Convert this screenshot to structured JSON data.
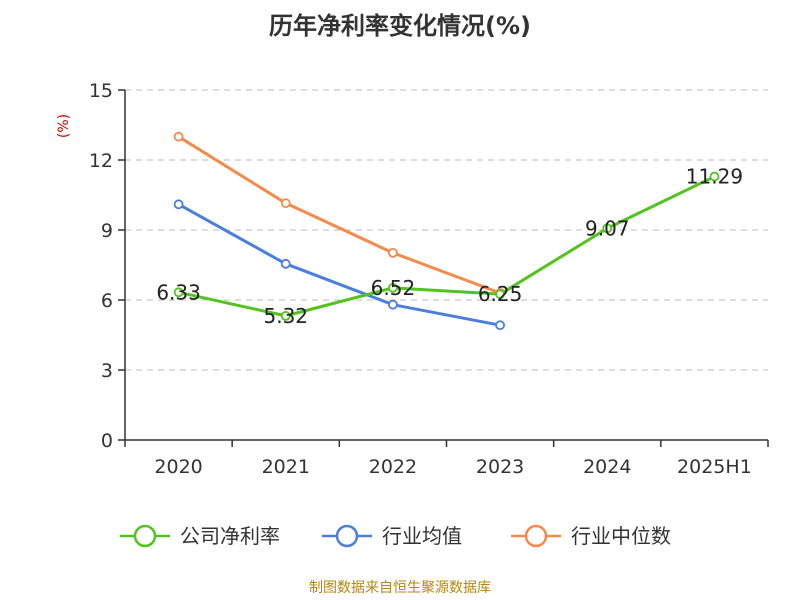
{
  "colors": {
    "net_margin": "#52c31f",
    "industry_mean": "#4a7fe0",
    "industry_median": "#f58a4b",
    "source_text": "#b8860b",
    "unit_text": "#cc0000"
  },
  "chart_data": {
    "type": "line",
    "title": "历年净利率变化情况(%)",
    "ylabel": "(%)",
    "xlabel": "",
    "categories": [
      "2020",
      "2021",
      "2022",
      "2023",
      "2024",
      "2025H1"
    ],
    "ylim": [
      0,
      15
    ],
    "yticks": [
      0,
      3,
      6,
      9,
      12,
      15
    ],
    "grid": true,
    "legend_position": "bottom",
    "series": [
      {
        "name": "公司净利率",
        "color": "#52c31f",
        "values": [
          6.33,
          5.32,
          6.52,
          6.25,
          9.07,
          11.29
        ],
        "show_labels": true
      },
      {
        "name": "行业均值",
        "color": "#4a7fe0",
        "values": [
          10.1,
          7.55,
          5.8,
          4.92,
          null,
          null
        ],
        "show_labels": false
      },
      {
        "name": "行业中位数",
        "color": "#f58a4b",
        "values": [
          13.0,
          10.15,
          8.02,
          6.3,
          null,
          null
        ],
        "show_labels": false
      }
    ]
  },
  "footer": {
    "source": "制图数据来自恒生聚源数据库"
  }
}
